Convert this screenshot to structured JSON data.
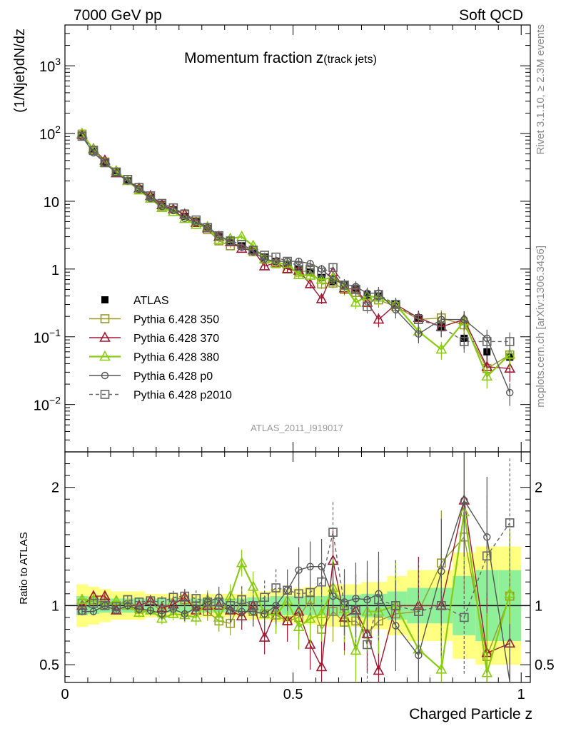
{
  "header": {
    "left": "7000 GeV pp",
    "right": "Soft QCD"
  },
  "side_labels": {
    "upper": "Rivet 3.1.10, ≥ 2.3M events",
    "lower": "mcplots.cern.ch [arXiv:1306.3436]"
  },
  "chart_data": [
    {
      "type": "line",
      "panel": "main",
      "title": "Momentum fraction",
      "title_variable": "z",
      "title_subscript": "(track jets)",
      "ylabel": "(1/Njet)dN/dz",
      "y_scale": "log",
      "ylim": [
        0.002,
        4000
      ],
      "xlim": [
        0,
        1.02
      ],
      "y_ticks": [
        {
          "value": 0.01,
          "label": "10",
          "exp": "−2"
        },
        {
          "value": 0.1,
          "label": "10",
          "exp": "−1"
        },
        {
          "value": 1,
          "label": "1",
          "exp": ""
        },
        {
          "value": 10,
          "label": "10",
          "exp": ""
        },
        {
          "value": 100,
          "label": "10",
          "exp": "2"
        },
        {
          "value": 1000,
          "label": "10",
          "exp": "3"
        }
      ],
      "watermark": "ATLAS_2011_I919017",
      "legend_position": "bottom-left",
      "x": [
        0.0375,
        0.0625,
        0.0875,
        0.1125,
        0.1375,
        0.1625,
        0.1875,
        0.2125,
        0.2375,
        0.2625,
        0.2875,
        0.3125,
        0.3375,
        0.3625,
        0.3875,
        0.4125,
        0.4375,
        0.4625,
        0.4875,
        0.5125,
        0.5375,
        0.5625,
        0.5875,
        0.6125,
        0.6375,
        0.6625,
        0.6875,
        0.725,
        0.775,
        0.825,
        0.875,
        0.925,
        0.975
      ],
      "series": [
        {
          "name": "ATLAS",
          "color": "#000000",
          "marker": "filled-square",
          "values": [
            95,
            55,
            37,
            27,
            20,
            15.5,
            11.5,
            9.0,
            7.5,
            6.0,
            5.0,
            4.0,
            3.0,
            2.6,
            2.2,
            1.9,
            1.5,
            1.3,
            1.15,
            1.0,
            0.9,
            0.75,
            0.65,
            0.58,
            0.52,
            0.42,
            0.4,
            0.3,
            0.19,
            0.14,
            0.095,
            0.06,
            0.05
          ]
        },
        {
          "name": "Pythia 6.428 350",
          "color": "#9a9a2a",
          "marker": "open-square",
          "linestyle": "solid",
          "values": [
            98,
            57,
            38,
            27,
            21,
            15,
            12,
            8.5,
            8.0,
            6.3,
            5.0,
            3.8,
            2.6,
            2.2,
            2.3,
            1.8,
            1.4,
            1.2,
            1.0,
            0.9,
            0.95,
            0.6,
            0.62,
            0.5,
            0.45,
            0.32,
            0.35,
            0.28,
            0.18,
            0.19,
            0.15,
            0.034,
            0.054
          ]
        },
        {
          "name": "Pythia 6.428 370",
          "color": "#a01830",
          "marker": "open-triangle",
          "linestyle": "solid",
          "values": [
            96,
            59,
            40,
            26,
            20,
            15.5,
            12,
            8.8,
            7.6,
            6.4,
            4.8,
            4.0,
            3.0,
            2.5,
            2.0,
            1.9,
            1.1,
            1.25,
            1.0,
            0.95,
            0.6,
            0.36,
            0.9,
            0.52,
            0.5,
            0.32,
            0.18,
            0.3,
            0.19,
            0.14,
            0.18,
            0.036,
            0.034
          ]
        },
        {
          "name": "Pythia 6.428 380",
          "color": "#88cc10",
          "marker": "open-triangle",
          "linestyle": "solid",
          "values": [
            100,
            58,
            37,
            28,
            20,
            14.5,
            11,
            8.0,
            7.0,
            5.5,
            4.5,
            4.2,
            2.7,
            2.8,
            3.0,
            2.2,
            1.4,
            1.2,
            1.2,
            0.82,
            0.8,
            0.7,
            0.75,
            0.56,
            0.32,
            0.4,
            0.38,
            0.3,
            0.12,
            0.065,
            0.17,
            0.026,
            0.055
          ]
        },
        {
          "name": "Pythia 6.428 p0",
          "color": "#555555",
          "marker": "open-circle",
          "linestyle": "solid",
          "values": [
            90,
            52,
            37,
            26,
            20,
            15,
            11,
            8.4,
            7.3,
            5.6,
            4.9,
            4.1,
            3.2,
            2.5,
            2.1,
            1.8,
            1.4,
            1.3,
            1.3,
            1.3,
            1.2,
            1.0,
            0.7,
            0.6,
            0.55,
            0.44,
            0.44,
            0.25,
            0.11,
            0.18,
            0.18,
            0.095,
            0.015
          ]
        },
        {
          "name": "Pythia 6.428 p2010",
          "color": "#666666",
          "marker": "open-square",
          "linestyle": "dashed",
          "values": [
            91,
            56,
            37,
            27,
            21,
            16,
            12,
            9.3,
            8.0,
            6.5,
            5.3,
            4.1,
            3.1,
            2.6,
            2.3,
            1.9,
            1.6,
            1.5,
            1.3,
            1.1,
            1.0,
            0.9,
            1.05,
            0.58,
            0.5,
            0.28,
            0.42,
            0.3,
            0.18,
            0.14,
            0.085,
            0.085,
            0.085
          ]
        }
      ]
    },
    {
      "type": "line",
      "panel": "ratio",
      "ylabel": "Ratio to ATLAS",
      "xlabel": "Charged Particle z",
      "ylim": [
        0.35,
        2.3
      ],
      "xlim": [
        0,
        1.02
      ],
      "y_ticks": [
        0.5,
        1,
        2
      ],
      "y_tick_labels": [
        "0.5",
        "1",
        "2"
      ],
      "x_ticks": [
        0,
        0.5,
        1
      ],
      "x_tick_labels": [
        "0",
        "0.5",
        "1"
      ],
      "reference_line": 1,
      "band_colors": {
        "inner": "#8ff09a",
        "outer": "#ffff80"
      },
      "band_inner": [
        0.08,
        0.07,
        0.06,
        0.06,
        0.06,
        0.06,
        0.06,
        0.06,
        0.06,
        0.06,
        0.06,
        0.06,
        0.06,
        0.06,
        0.06,
        0.07,
        0.07,
        0.08,
        0.08,
        0.08,
        0.08,
        0.08,
        0.09,
        0.09,
        0.09,
        0.1,
        0.1,
        0.12,
        0.15,
        0.15,
        0.25,
        0.3,
        0.3
      ],
      "band_outer": [
        0.18,
        0.16,
        0.14,
        0.12,
        0.12,
        0.12,
        0.1,
        0.1,
        0.1,
        0.1,
        0.1,
        0.1,
        0.1,
        0.1,
        0.1,
        0.12,
        0.12,
        0.14,
        0.14,
        0.15,
        0.16,
        0.16,
        0.18,
        0.18,
        0.18,
        0.2,
        0.2,
        0.25,
        0.3,
        0.3,
        0.45,
        0.5,
        0.5
      ],
      "series": [
        {
          "name": "Pythia 6.428 350",
          "color": "#9a9a2a",
          "marker": "open-square",
          "linestyle": "solid",
          "values": [
            1.02,
            1.04,
            1.03,
            1.0,
            1.05,
            0.97,
            1.04,
            0.94,
            1.07,
            1.05,
            1.0,
            0.95,
            0.87,
            0.85,
            1.05,
            0.95,
            0.93,
            0.92,
            0.87,
            0.9,
            1.05,
            0.8,
            0.95,
            0.86,
            0.87,
            0.76,
            0.87,
            0.93,
            0.95,
            1.36,
            1.58,
            0.57,
            1.08
          ]
        },
        {
          "name": "Pythia 6.428 370",
          "color": "#a01830",
          "marker": "open-triangle",
          "linestyle": "solid",
          "values": [
            1.0,
            1.08,
            1.08,
            0.96,
            1.0,
            1.0,
            1.04,
            0.98,
            1.01,
            1.07,
            0.96,
            1.0,
            1.0,
            0.96,
            0.91,
            1.0,
            0.73,
            0.96,
            0.87,
            0.95,
            0.67,
            0.48,
            1.38,
            0.9,
            0.96,
            0.76,
            0.45,
            1.0,
            1.0,
            1.0,
            1.89,
            0.6,
            0.68
          ]
        },
        {
          "name": "Pythia 6.428 380",
          "color": "#88cc10",
          "marker": "open-triangle",
          "linestyle": "solid",
          "values": [
            1.05,
            1.05,
            1.0,
            1.04,
            1.0,
            0.94,
            0.96,
            0.89,
            0.93,
            0.92,
            0.9,
            1.05,
            0.9,
            1.08,
            1.36,
            1.16,
            0.93,
            0.92,
            1.04,
            0.82,
            0.89,
            0.93,
            1.15,
            0.97,
            0.62,
            0.95,
            0.95,
            1.0,
            0.63,
            0.46,
            1.79,
            0.43,
            1.1
          ]
        },
        {
          "name": "Pythia 6.428 p0",
          "color": "#555555",
          "marker": "open-circle",
          "linestyle": "solid",
          "values": [
            0.95,
            0.95,
            1.0,
            0.96,
            1.0,
            0.97,
            0.96,
            0.93,
            0.97,
            0.93,
            0.98,
            1.03,
            1.07,
            0.96,
            0.95,
            0.95,
            0.93,
            1.0,
            1.13,
            1.3,
            1.33,
            1.33,
            1.08,
            1.03,
            1.06,
            1.05,
            1.1,
            0.83,
            0.58,
            1.29,
            1.89,
            1.58,
            0.3
          ]
        },
        {
          "name": "Pythia 6.428 p2010",
          "color": "#666666",
          "marker": "open-square",
          "linestyle": "dashed",
          "values": [
            0.96,
            1.02,
            1.0,
            0.99,
            1.05,
            1.03,
            1.04,
            1.03,
            1.07,
            1.08,
            1.06,
            1.03,
            1.03,
            1.0,
            1.05,
            1.0,
            1.07,
            1.15,
            1.13,
            1.1,
            1.11,
            1.2,
            1.62,
            1.0,
            0.96,
            0.67,
            1.05,
            1.0,
            0.95,
            1.0,
            0.9,
            1.42,
            1.7
          ]
        }
      ]
    }
  ]
}
